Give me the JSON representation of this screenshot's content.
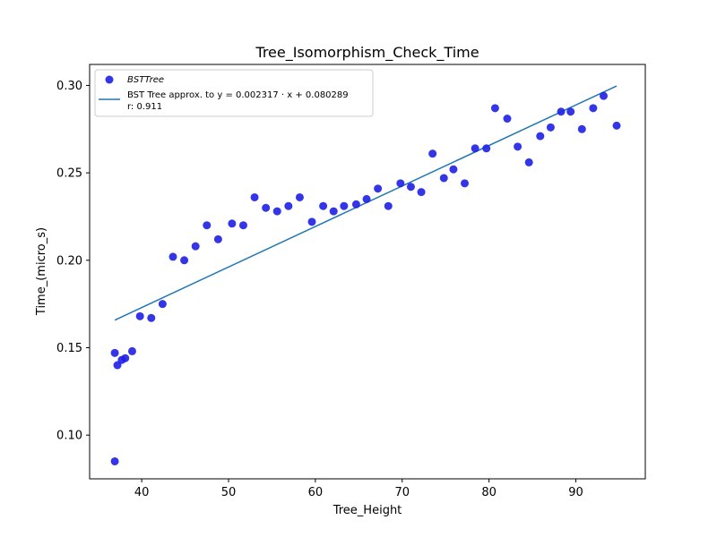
{
  "chart_data": {
    "type": "scatter",
    "title": "Tree_Isomorphism_Check_Time",
    "xlabel": "Tree_Height",
    "ylabel": "Time_(micro_s)",
    "xlim": [
      34.0,
      98.0
    ],
    "ylim": [
      0.075,
      0.312
    ],
    "xticks": [
      40,
      50,
      60,
      70,
      80,
      90
    ],
    "yticks": [
      0.1,
      0.15,
      0.2,
      0.25,
      0.3
    ],
    "xtick_labels": [
      "40",
      "50",
      "60",
      "70",
      "80",
      "90"
    ],
    "ytick_labels": [
      "0.10",
      "0.15",
      "0.20",
      "0.25",
      "0.30"
    ],
    "grid": false,
    "legend_position": "top-left",
    "series": [
      {
        "name": "BSTTree",
        "kind": "scatter",
        "color": "#1f1fe6",
        "points": [
          [
            36.9,
            0.085
          ],
          [
            36.9,
            0.147
          ],
          [
            37.2,
            0.14
          ],
          [
            37.7,
            0.143
          ],
          [
            38.1,
            0.144
          ],
          [
            38.9,
            0.148
          ],
          [
            39.8,
            0.168
          ],
          [
            41.1,
            0.167
          ],
          [
            42.4,
            0.175
          ],
          [
            43.6,
            0.202
          ],
          [
            44.9,
            0.2
          ],
          [
            46.2,
            0.208
          ],
          [
            47.5,
            0.22
          ],
          [
            48.8,
            0.212
          ],
          [
            50.4,
            0.221
          ],
          [
            51.7,
            0.22
          ],
          [
            53.0,
            0.236
          ],
          [
            54.3,
            0.23
          ],
          [
            55.6,
            0.228
          ],
          [
            56.9,
            0.231
          ],
          [
            58.2,
            0.236
          ],
          [
            59.6,
            0.222
          ],
          [
            60.9,
            0.231
          ],
          [
            62.1,
            0.228
          ],
          [
            63.3,
            0.231
          ],
          [
            64.7,
            0.232
          ],
          [
            65.9,
            0.235
          ],
          [
            67.2,
            0.241
          ],
          [
            68.4,
            0.231
          ],
          [
            69.8,
            0.244
          ],
          [
            71.0,
            0.242
          ],
          [
            72.2,
            0.239
          ],
          [
            73.5,
            0.261
          ],
          [
            74.8,
            0.247
          ],
          [
            75.9,
            0.252
          ],
          [
            77.2,
            0.244
          ],
          [
            78.4,
            0.264
          ],
          [
            79.7,
            0.264
          ],
          [
            80.7,
            0.287
          ],
          [
            82.1,
            0.281
          ],
          [
            83.3,
            0.265
          ],
          [
            84.6,
            0.256
          ],
          [
            85.9,
            0.271
          ],
          [
            87.1,
            0.276
          ],
          [
            88.3,
            0.285
          ],
          [
            89.4,
            0.285
          ],
          [
            90.7,
            0.275
          ],
          [
            92.0,
            0.287
          ],
          [
            93.2,
            0.294
          ],
          [
            94.7,
            0.277
          ]
        ]
      },
      {
        "name": "BST Tree approx. to y = 0.002317 · x + 0.080289",
        "kind": "line",
        "color": "#1f77b4",
        "slope": 0.002317,
        "intercept": 0.080289,
        "x_range": [
          36.9,
          94.7
        ],
        "r_label": "r: 0.911"
      }
    ]
  }
}
